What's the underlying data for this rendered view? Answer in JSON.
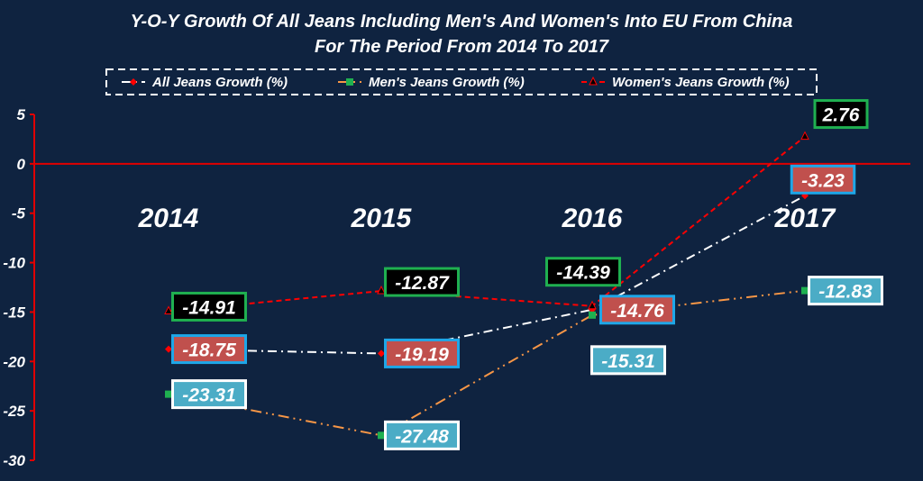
{
  "chart_data": {
    "type": "line",
    "title_lines": [
      "Y-O-Y Growth Of All Jeans Including Men's And Women's Into EU From China",
      "For The Period From 2014 To 2017"
    ],
    "categories": [
      "2014",
      "2015",
      "2016",
      "2017"
    ],
    "ylim": [
      -30,
      5
    ],
    "yticks": [
      "5",
      "0",
      "-5",
      "-10",
      "-15",
      "-20",
      "-25",
      "-30"
    ],
    "grid": false,
    "legend_position": "top",
    "background": "#0f2340",
    "axis_color": "#e00000",
    "series": [
      {
        "name": "All Jeans Growth (%)",
        "values": [
          -18.75,
          -19.19,
          -14.76,
          -3.23
        ],
        "labels": [
          "-18.75",
          "-19.19",
          "-14.76",
          "-3.23"
        ],
        "color": "#ffffff",
        "marker": "diamond",
        "marker_color": "#ff0000",
        "label_fill": "#c0504d",
        "label_border": "#1ea7e8"
      },
      {
        "name": "Men's Jeans Growth (%)",
        "values": [
          -23.31,
          -27.48,
          -15.31,
          -12.83
        ],
        "labels": [
          "-23.31",
          "-27.48",
          "-15.31",
          "-12.83"
        ],
        "color": "#f79646",
        "marker": "square",
        "marker_color": "#1fb050",
        "label_fill": "#4bacc6",
        "label_border": "#ffffff"
      },
      {
        "name": "Women's Jeans Growth (%)",
        "values": [
          -14.91,
          -12.87,
          -14.39,
          2.76
        ],
        "labels": [
          "-14.91",
          "-12.87",
          "-14.39",
          "2.76"
        ],
        "color": "#ff0000",
        "marker": "triangle",
        "marker_color": "#000000",
        "label_fill": "#000000",
        "label_border": "#1fb050"
      }
    ]
  }
}
